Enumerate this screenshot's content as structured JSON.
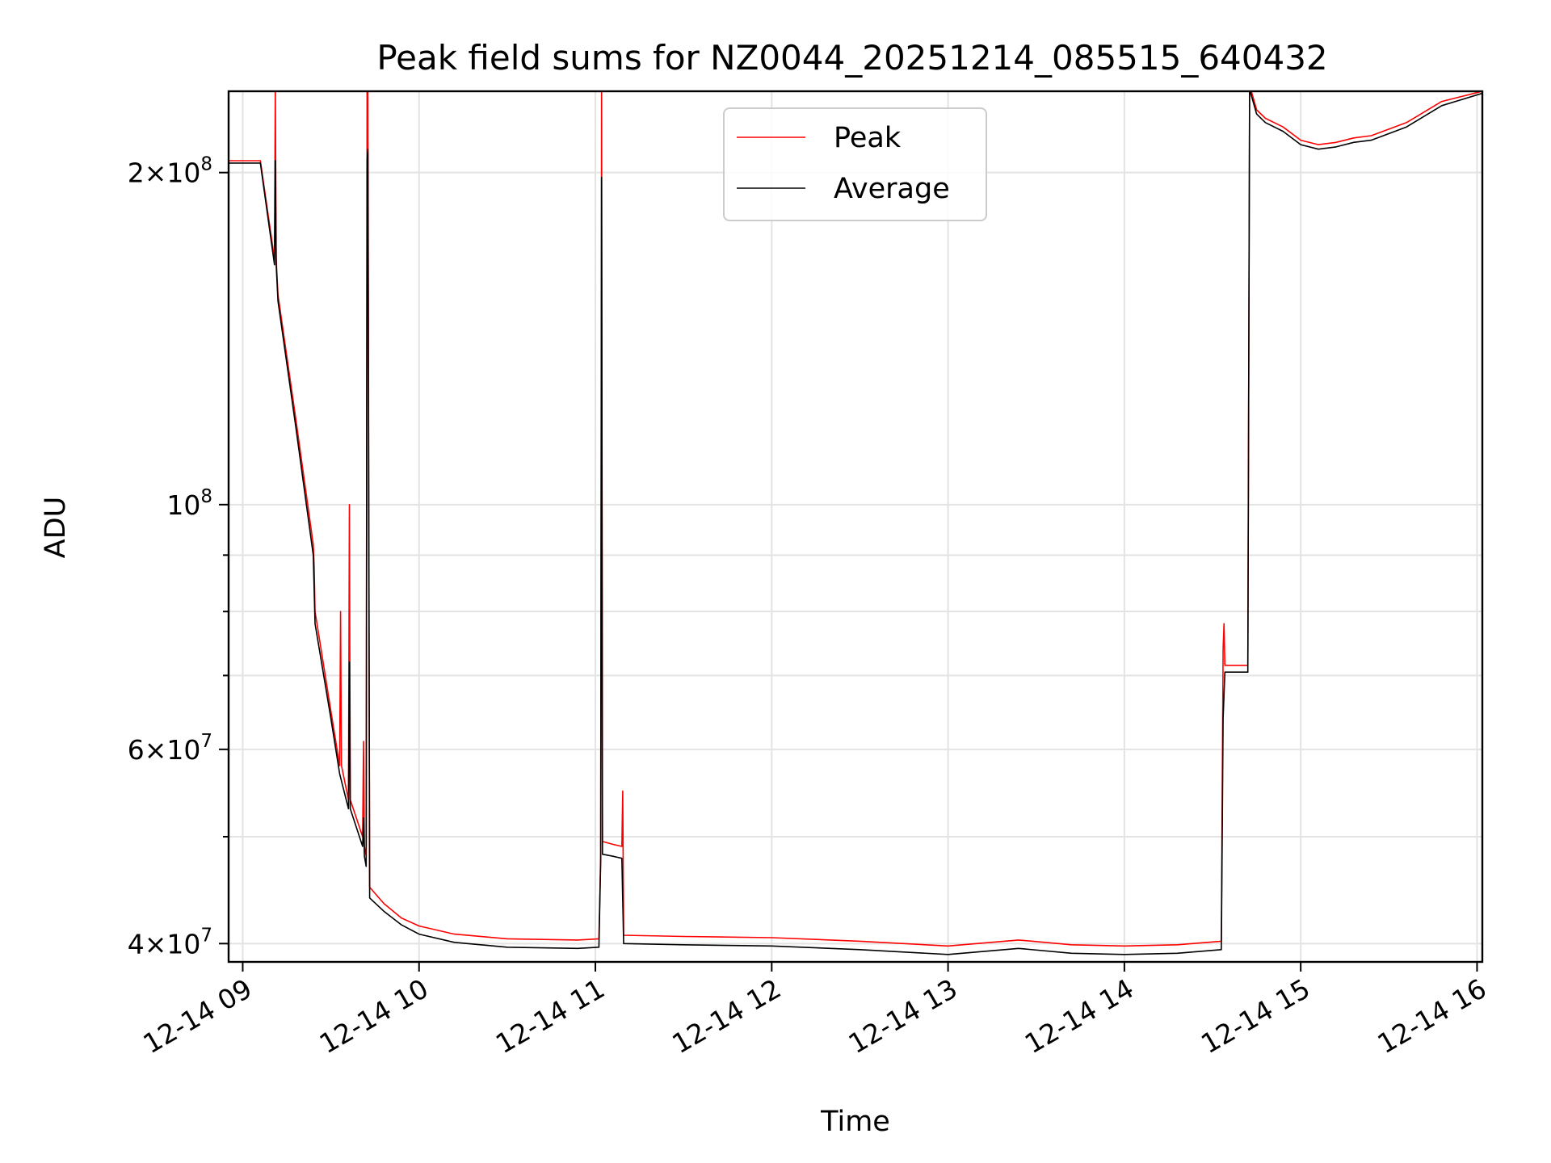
{
  "chart_data": {
    "type": "line",
    "title": "Peak field sums for NZ0044_20251214_085515_640432",
    "xlabel": "Time",
    "ylabel": "ADU",
    "y_scale": "log",
    "grid": true,
    "legend_position": "top-center",
    "x_range_hours": [
      8.92,
      16.03
    ],
    "ylim": [
      38500000,
      237000000
    ],
    "x_ticks": [
      {
        "hour": 9,
        "label": "12-14 09"
      },
      {
        "hour": 10,
        "label": "12-14 10"
      },
      {
        "hour": 11,
        "label": "12-14 11"
      },
      {
        "hour": 12,
        "label": "12-14 12"
      },
      {
        "hour": 13,
        "label": "12-14 13"
      },
      {
        "hour": 14,
        "label": "12-14 14"
      },
      {
        "hour": 15,
        "label": "12-14 15"
      },
      {
        "hour": 16,
        "label": "12-14 16"
      }
    ],
    "y_major_ticks": [
      {
        "value": 40000000,
        "mant": "4",
        "exp": "7"
      },
      {
        "value": 60000000,
        "mant": "6",
        "exp": "7"
      },
      {
        "value": 100000000,
        "mant": "",
        "exp": "8"
      },
      {
        "value": 200000000,
        "mant": "2",
        "exp": "8"
      }
    ],
    "y_minor_grid": [
      50000000,
      70000000,
      80000000,
      90000000
    ],
    "series": [
      {
        "name": "Peak",
        "color": "#ff0000",
        "points": [
          [
            8.92,
            205000000
          ],
          [
            9.1,
            205000000
          ],
          [
            9.18,
            167000000
          ],
          [
            9.185,
            240000000
          ],
          [
            9.19,
            167000000
          ],
          [
            9.2,
            155000000
          ],
          [
            9.3,
            120000000
          ],
          [
            9.4,
            92000000
          ],
          [
            9.405,
            88000000
          ],
          [
            9.41,
            80000000
          ],
          [
            9.5,
            65000000
          ],
          [
            9.55,
            58000000
          ],
          [
            9.555,
            80000000
          ],
          [
            9.56,
            58000000
          ],
          [
            9.6,
            54000000
          ],
          [
            9.605,
            100000000
          ],
          [
            9.61,
            54000000
          ],
          [
            9.68,
            50000000
          ],
          [
            9.685,
            61000000
          ],
          [
            9.69,
            49000000
          ],
          [
            9.7,
            48000000
          ],
          [
            9.705,
            237000000
          ],
          [
            9.71,
            240000000
          ],
          [
            9.72,
            45000000
          ],
          [
            9.8,
            43500000
          ],
          [
            9.9,
            42200000
          ],
          [
            10.0,
            41500000
          ],
          [
            10.2,
            40800000
          ],
          [
            10.5,
            40400000
          ],
          [
            10.9,
            40300000
          ],
          [
            11.02,
            40400000
          ],
          [
            11.03,
            48000000
          ],
          [
            11.035,
            240000000
          ],
          [
            11.04,
            49500000
          ],
          [
            11.1,
            49200000
          ],
          [
            11.15,
            49000000
          ],
          [
            11.155,
            55000000
          ],
          [
            11.16,
            40700000
          ],
          [
            11.5,
            40600000
          ],
          [
            12.0,
            40500000
          ],
          [
            12.5,
            40200000
          ],
          [
            13.0,
            39800000
          ],
          [
            13.4,
            40300000
          ],
          [
            13.7,
            39900000
          ],
          [
            14.0,
            39800000
          ],
          [
            14.3,
            39900000
          ],
          [
            14.55,
            40200000
          ],
          [
            14.56,
            74000000
          ],
          [
            14.565,
            78000000
          ],
          [
            14.57,
            71500000
          ],
          [
            14.7,
            71500000
          ],
          [
            14.71,
            240000000
          ],
          [
            14.75,
            228000000
          ],
          [
            14.8,
            224000000
          ],
          [
            14.9,
            220000000
          ],
          [
            15.0,
            214000000
          ],
          [
            15.1,
            212000000
          ],
          [
            15.2,
            213000000
          ],
          [
            15.3,
            215000000
          ],
          [
            15.4,
            216000000
          ],
          [
            15.6,
            222000000
          ],
          [
            15.8,
            232000000
          ],
          [
            16.03,
            237000000
          ]
        ]
      },
      {
        "name": "Average",
        "color": "#000000",
        "points": [
          [
            8.92,
            204000000
          ],
          [
            9.1,
            204000000
          ],
          [
            9.18,
            165000000
          ],
          [
            9.185,
            205000000
          ],
          [
            9.19,
            165000000
          ],
          [
            9.2,
            153000000
          ],
          [
            9.3,
            118000000
          ],
          [
            9.4,
            90000000
          ],
          [
            9.41,
            78000000
          ],
          [
            9.5,
            64000000
          ],
          [
            9.55,
            57000000
          ],
          [
            9.6,
            53000000
          ],
          [
            9.605,
            72000000
          ],
          [
            9.61,
            53000000
          ],
          [
            9.68,
            49000000
          ],
          [
            9.685,
            52000000
          ],
          [
            9.69,
            48000000
          ],
          [
            9.7,
            47000000
          ],
          [
            9.705,
            205000000
          ],
          [
            9.71,
            210000000
          ],
          [
            9.72,
            44000000
          ],
          [
            9.8,
            42800000
          ],
          [
            9.9,
            41600000
          ],
          [
            10.0,
            40800000
          ],
          [
            10.2,
            40100000
          ],
          [
            10.5,
            39700000
          ],
          [
            10.9,
            39600000
          ],
          [
            11.02,
            39700000
          ],
          [
            11.03,
            47500000
          ],
          [
            11.035,
            198000000
          ],
          [
            11.04,
            48200000
          ],
          [
            11.1,
            48000000
          ],
          [
            11.15,
            47800000
          ],
          [
            11.16,
            40000000
          ],
          [
            11.5,
            39900000
          ],
          [
            12.0,
            39800000
          ],
          [
            12.5,
            39500000
          ],
          [
            13.0,
            39100000
          ],
          [
            13.4,
            39600000
          ],
          [
            13.7,
            39200000
          ],
          [
            14.0,
            39100000
          ],
          [
            14.3,
            39200000
          ],
          [
            14.55,
            39500000
          ],
          [
            14.56,
            64000000
          ],
          [
            14.57,
            70500000
          ],
          [
            14.7,
            70500000
          ],
          [
            14.71,
            238000000
          ],
          [
            14.75,
            226000000
          ],
          [
            14.8,
            222000000
          ],
          [
            14.9,
            218000000
          ],
          [
            15.0,
            212000000
          ],
          [
            15.1,
            210000000
          ],
          [
            15.2,
            211000000
          ],
          [
            15.3,
            213000000
          ],
          [
            15.4,
            214000000
          ],
          [
            15.6,
            220000000
          ],
          [
            15.8,
            230000000
          ],
          [
            16.03,
            236000000
          ]
        ]
      }
    ]
  }
}
